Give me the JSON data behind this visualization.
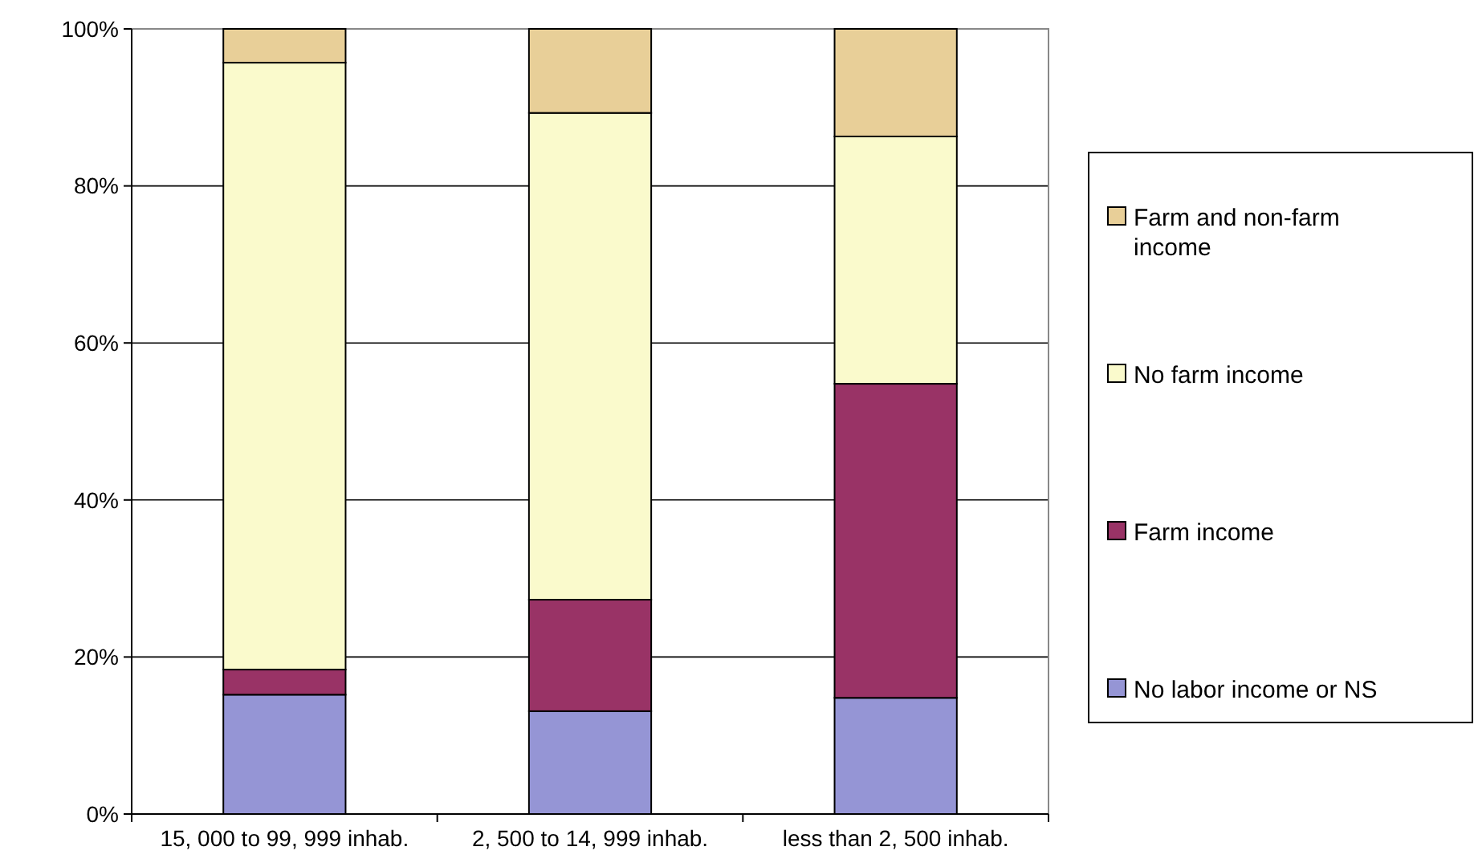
{
  "chart_data": {
    "type": "bar",
    "stacked": true,
    "categories": [
      "15, 000 to 99, 999 inhab.",
      "2, 500 to 14, 999 inhab.",
      "less than 2, 500 inhab."
    ],
    "series": [
      {
        "name": "No labor income or NS",
        "color": "#9595d5",
        "values": [
          15.2,
          13.1,
          14.8
        ]
      },
      {
        "name": "Farm income",
        "color": "#993366",
        "values": [
          3.2,
          14.2,
          40.0
        ]
      },
      {
        "name": "No farm income",
        "color": "#fafacc",
        "values": [
          77.3,
          62.0,
          31.5
        ]
      },
      {
        "name": "Farm and non-farm income",
        "color": "#e8cf98",
        "values": [
          4.3,
          10.7,
          13.7
        ]
      }
    ],
    "ylim": [
      0,
      100
    ],
    "yticks": [
      {
        "value": 0,
        "label": "0%"
      },
      {
        "value": 20,
        "label": "20%"
      },
      {
        "value": 40,
        "label": "40%"
      },
      {
        "value": 60,
        "label": "60%"
      },
      {
        "value": 80,
        "label": "80%"
      },
      {
        "value": 100,
        "label": "100%"
      }
    ],
    "grid": "y",
    "legend": "right"
  }
}
